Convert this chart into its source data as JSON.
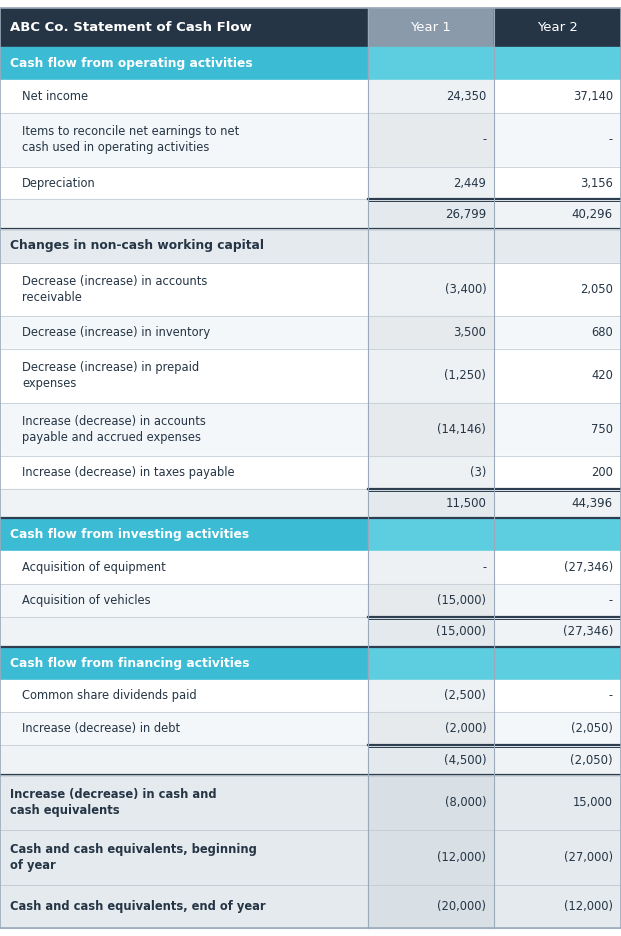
{
  "title": "ABC Co. Statement of Cash Flow",
  "col1_header": "Year 1",
  "col2_header": "Year 2",
  "header_bg": "#253545",
  "header_text_color": "#ffffff",
  "header_year1_bg": "#8a9aaa",
  "header_year2_bg": "#253545",
  "section_bg": "#3bbbd4",
  "section_year_bg": "#5dcde0",
  "section_text_color": "#ffffff",
  "subheader_bg": "#e4eaee",
  "subheader_text_color": "#253545",
  "text_color": "#253545",
  "bold_rows_bg": "#e4eaee",
  "bold_rows_v_bg": "#d8dfe5",
  "col_divider1": 0.592,
  "col_divider2": 0.796,
  "rows": [
    {
      "type": "section",
      "label": "Cash flow from operating activities",
      "v1": "",
      "v2": ""
    },
    {
      "type": "data",
      "label": "Net income",
      "v1": "24,350",
      "v2": "37,140"
    },
    {
      "type": "data",
      "label": "Items to reconcile net earnings to net\ncash used in operating activities",
      "v1": "-",
      "v2": "-"
    },
    {
      "type": "data",
      "label": "Depreciation",
      "v1": "2,449",
      "v2": "3,156"
    },
    {
      "type": "subtotal",
      "label": "",
      "v1": "26,799",
      "v2": "40,296"
    },
    {
      "type": "subheader",
      "label": "Changes in non-cash working capital",
      "v1": "",
      "v2": ""
    },
    {
      "type": "data",
      "label": "Decrease (increase) in accounts\nreceivable",
      "v1": "(3,400)",
      "v2": "2,050"
    },
    {
      "type": "data",
      "label": "Decrease (increase) in inventory",
      "v1": "3,500",
      "v2": "680"
    },
    {
      "type": "data",
      "label": "Decrease (increase) in prepaid\nexpenses",
      "v1": "(1,250)",
      "v2": "420"
    },
    {
      "type": "data",
      "label": "Increase (decrease) in accounts\npayable and accrued expenses",
      "v1": "(14,146)",
      "v2": "750"
    },
    {
      "type": "data",
      "label": "Increase (decrease) in taxes payable",
      "v1": "(3)",
      "v2": "200"
    },
    {
      "type": "subtotal",
      "label": "",
      "v1": "11,500",
      "v2": "44,396"
    },
    {
      "type": "section",
      "label": "Cash flow from investing activities",
      "v1": "",
      "v2": ""
    },
    {
      "type": "data",
      "label": "Acquisition of equipment",
      "v1": "-",
      "v2": "(27,346)"
    },
    {
      "type": "data",
      "label": "Acquisition of vehicles",
      "v1": "(15,000)",
      "v2": "-"
    },
    {
      "type": "subtotal",
      "label": "",
      "v1": "(15,000)",
      "v2": "(27,346)"
    },
    {
      "type": "section",
      "label": "Cash flow from financing activities",
      "v1": "",
      "v2": ""
    },
    {
      "type": "data",
      "label": "Common share dividends paid",
      "v1": "(2,500)",
      "v2": "-"
    },
    {
      "type": "data",
      "label": "Increase (decrease) in debt",
      "v1": "(2,000)",
      "v2": "(2,050)"
    },
    {
      "type": "subtotal",
      "label": "",
      "v1": "(4,500)",
      "v2": "(2,050)"
    },
    {
      "type": "bold_data",
      "label": "Increase (decrease) in cash and\ncash equivalents",
      "v1": "(8,000)",
      "v2": "15,000"
    },
    {
      "type": "bold_data",
      "label": "Cash and cash equivalents, beginning\nof year",
      "v1": "(12,000)",
      "v2": "(27,000)"
    },
    {
      "type": "bold_data",
      "label": "Cash and cash equivalents, end of year",
      "v1": "(20,000)",
      "v2": "(12,000)"
    }
  ]
}
